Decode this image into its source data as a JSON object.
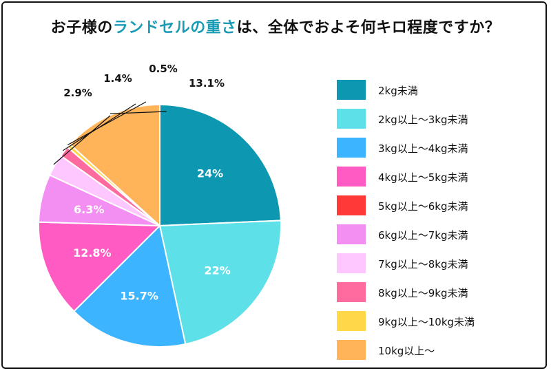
{
  "title": {
    "part1": "お子様の",
    "part2": "ランドセルの重さ",
    "part3": "は、全体でおよそ何キロ程度ですか？",
    "accent_color": "#1a9bb5"
  },
  "chart_data": {
    "type": "pie",
    "slices": [
      {
        "label": "2kg未満",
        "value": 24,
        "value_text": "24%",
        "color": "#0e97b0"
      },
      {
        "label": "2kg以上〜3kg未満",
        "value": 22,
        "value_text": "22%",
        "color": "#5ee0e8"
      },
      {
        "label": "3kg以上〜4kg未満",
        "value": 15.7,
        "value_text": "15.7%",
        "color": "#3cb4ff"
      },
      {
        "label": "4kg以上〜5kg未満",
        "value": 12.8,
        "value_text": "12.8%",
        "color": "#ff5bc2"
      },
      {
        "label": "5kg以上〜6kg未満",
        "value": 0,
        "value_text": "",
        "color": "#ff3838"
      },
      {
        "label": "6kg以上〜7kg未満",
        "value": 6.3,
        "value_text": "6.3%",
        "color": "#f38ff2"
      },
      {
        "label": "7kg以上〜8kg未満",
        "value": 2.9,
        "value_text": "2.9%",
        "color": "#ffc7ff"
      },
      {
        "label": "8kg以上〜9kg未満",
        "value": 1.4,
        "value_text": "1.4%",
        "color": "#ff6b9f"
      },
      {
        "label": "9kg以上〜10kg未満",
        "value": 0.5,
        "value_text": "0.5%",
        "color": "#ffd84a"
      },
      {
        "label": "10kg以上〜",
        "value": 13.1,
        "value_text": "13.1%",
        "color": "#ffb45a"
      }
    ],
    "legend_position": "right"
  }
}
